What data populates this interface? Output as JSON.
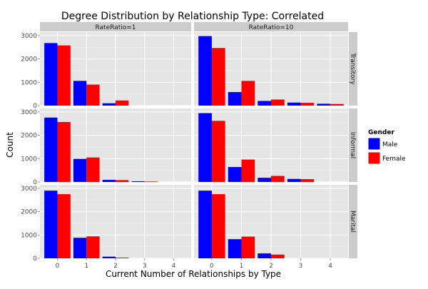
{
  "chart_data": {
    "type": "bar",
    "title": "Degree Distribution by Relationship Type: Correlated",
    "xlabel": "Current Number of Relationships by Type",
    "ylabel": "Count",
    "x_categories": [
      "0",
      "1",
      "2",
      "3",
      "4"
    ],
    "y_ticks": [
      0,
      1000,
      2000,
      3000
    ],
    "ylim": [
      0,
      3150
    ],
    "grid": true,
    "legend": {
      "title": "Gender",
      "position": "right",
      "entries": [
        {
          "name": "Male",
          "color": "#0000ff"
        },
        {
          "name": "Female",
          "color": "#ff0000"
        }
      ]
    },
    "facet_cols": [
      "RateRatio=1",
      "RateRatio=10"
    ],
    "facet_rows": [
      "Transitory",
      "Informal",
      "Marital"
    ],
    "panels": [
      {
        "row": "Transitory",
        "col": "RateRatio=1",
        "male": [
          2680,
          1060,
          100,
          0,
          0
        ],
        "female": [
          2580,
          900,
          220,
          0,
          0
        ]
      },
      {
        "row": "Transitory",
        "col": "RateRatio=10",
        "male": [
          2980,
          580,
          200,
          130,
          80
        ],
        "female": [
          2470,
          1060,
          260,
          120,
          70
        ]
      },
      {
        "row": "Informal",
        "col": "RateRatio=1",
        "male": [
          2760,
          990,
          90,
          30,
          0
        ],
        "female": [
          2570,
          1050,
          80,
          20,
          0
        ]
      },
      {
        "row": "Informal",
        "col": "RateRatio=10",
        "male": [
          2950,
          640,
          180,
          130,
          0
        ],
        "female": [
          2620,
          960,
          260,
          120,
          0
        ]
      },
      {
        "row": "Marital",
        "col": "RateRatio=1",
        "male": [
          2900,
          880,
          70,
          0,
          0
        ],
        "female": [
          2750,
          940,
          30,
          0,
          0
        ]
      },
      {
        "row": "Marital",
        "col": "RateRatio=10",
        "male": [
          2900,
          820,
          210,
          0,
          0
        ],
        "female": [
          2750,
          930,
          160,
          0,
          0
        ]
      }
    ],
    "colors": {
      "panel_bg": "#e5e5e5",
      "grid": "#ffffff",
      "strip_bg": "#cccccc"
    }
  }
}
